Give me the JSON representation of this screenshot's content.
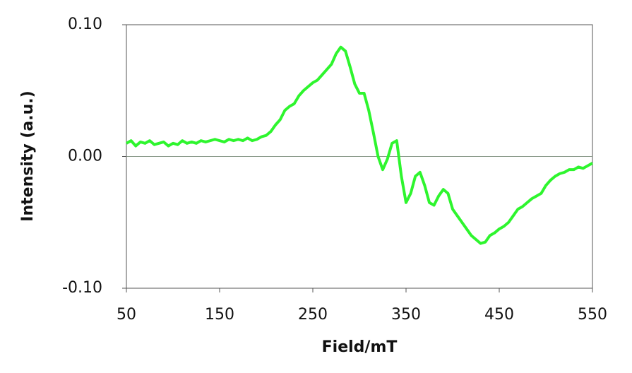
{
  "chart_data": {
    "type": "line",
    "x_label": "Field/mT",
    "y_label": "Intensity (a.u.)",
    "xlim": [
      50,
      550
    ],
    "xticks": [
      50,
      150,
      250,
      350,
      450,
      550
    ],
    "ylim": [
      -0.1,
      0.1
    ],
    "yticks": [
      {
        "value": -0.1,
        "label": "-0.10"
      },
      {
        "value": 0,
        "label": "0.00"
      },
      {
        "value": 0.1,
        "label": "0.10"
      }
    ],
    "color": "#2ef52e",
    "x": [
      50,
      55,
      60,
      65,
      70,
      75,
      80,
      85,
      90,
      95,
      100,
      105,
      110,
      115,
      120,
      125,
      130,
      135,
      140,
      145,
      150,
      155,
      160,
      165,
      170,
      175,
      180,
      185,
      190,
      195,
      200,
      205,
      210,
      215,
      220,
      225,
      230,
      235,
      240,
      245,
      250,
      255,
      260,
      265,
      270,
      275,
      280,
      285,
      290,
      295,
      300,
      305,
      310,
      315,
      320,
      325,
      330,
      335,
      340,
      345,
      350,
      355,
      360,
      365,
      370,
      375,
      380,
      385,
      390,
      395,
      400,
      405,
      410,
      415,
      420,
      425,
      430,
      435,
      440,
      445,
      450,
      455,
      460,
      465,
      470,
      475,
      480,
      485,
      490,
      495,
      500,
      505,
      510,
      515,
      520,
      525,
      530,
      535,
      540,
      545,
      550
    ],
    "values": [
      0.01,
      0.012,
      0.008,
      0.011,
      0.01,
      0.012,
      0.009,
      0.01,
      0.011,
      0.008,
      0.01,
      0.009,
      0.012,
      0.01,
      0.011,
      0.01,
      0.012,
      0.011,
      0.012,
      0.013,
      0.012,
      0.011,
      0.013,
      0.012,
      0.013,
      0.012,
      0.014,
      0.012,
      0.013,
      0.015,
      0.016,
      0.019,
      0.024,
      0.028,
      0.035,
      0.038,
      0.04,
      0.046,
      0.05,
      0.053,
      0.056,
      0.058,
      0.062,
      0.066,
      0.07,
      0.078,
      0.083,
      0.08,
      0.068,
      0.055,
      0.048,
      0.048,
      0.035,
      0.018,
      0.0,
      -0.01,
      -0.002,
      0.01,
      0.012,
      -0.015,
      -0.035,
      -0.028,
      -0.015,
      -0.012,
      -0.022,
      -0.035,
      -0.037,
      -0.03,
      -0.025,
      -0.028,
      -0.04,
      -0.045,
      -0.05,
      -0.055,
      -0.06,
      -0.063,
      -0.066,
      -0.065,
      -0.06,
      -0.058,
      -0.055,
      -0.053,
      -0.05,
      -0.045,
      -0.04,
      -0.038,
      -0.035,
      -0.032,
      -0.03,
      -0.028,
      -0.022,
      -0.018,
      -0.015,
      -0.013,
      -0.012,
      -0.01,
      -0.01,
      -0.008,
      -0.009,
      -0.007,
      -0.005
    ]
  }
}
